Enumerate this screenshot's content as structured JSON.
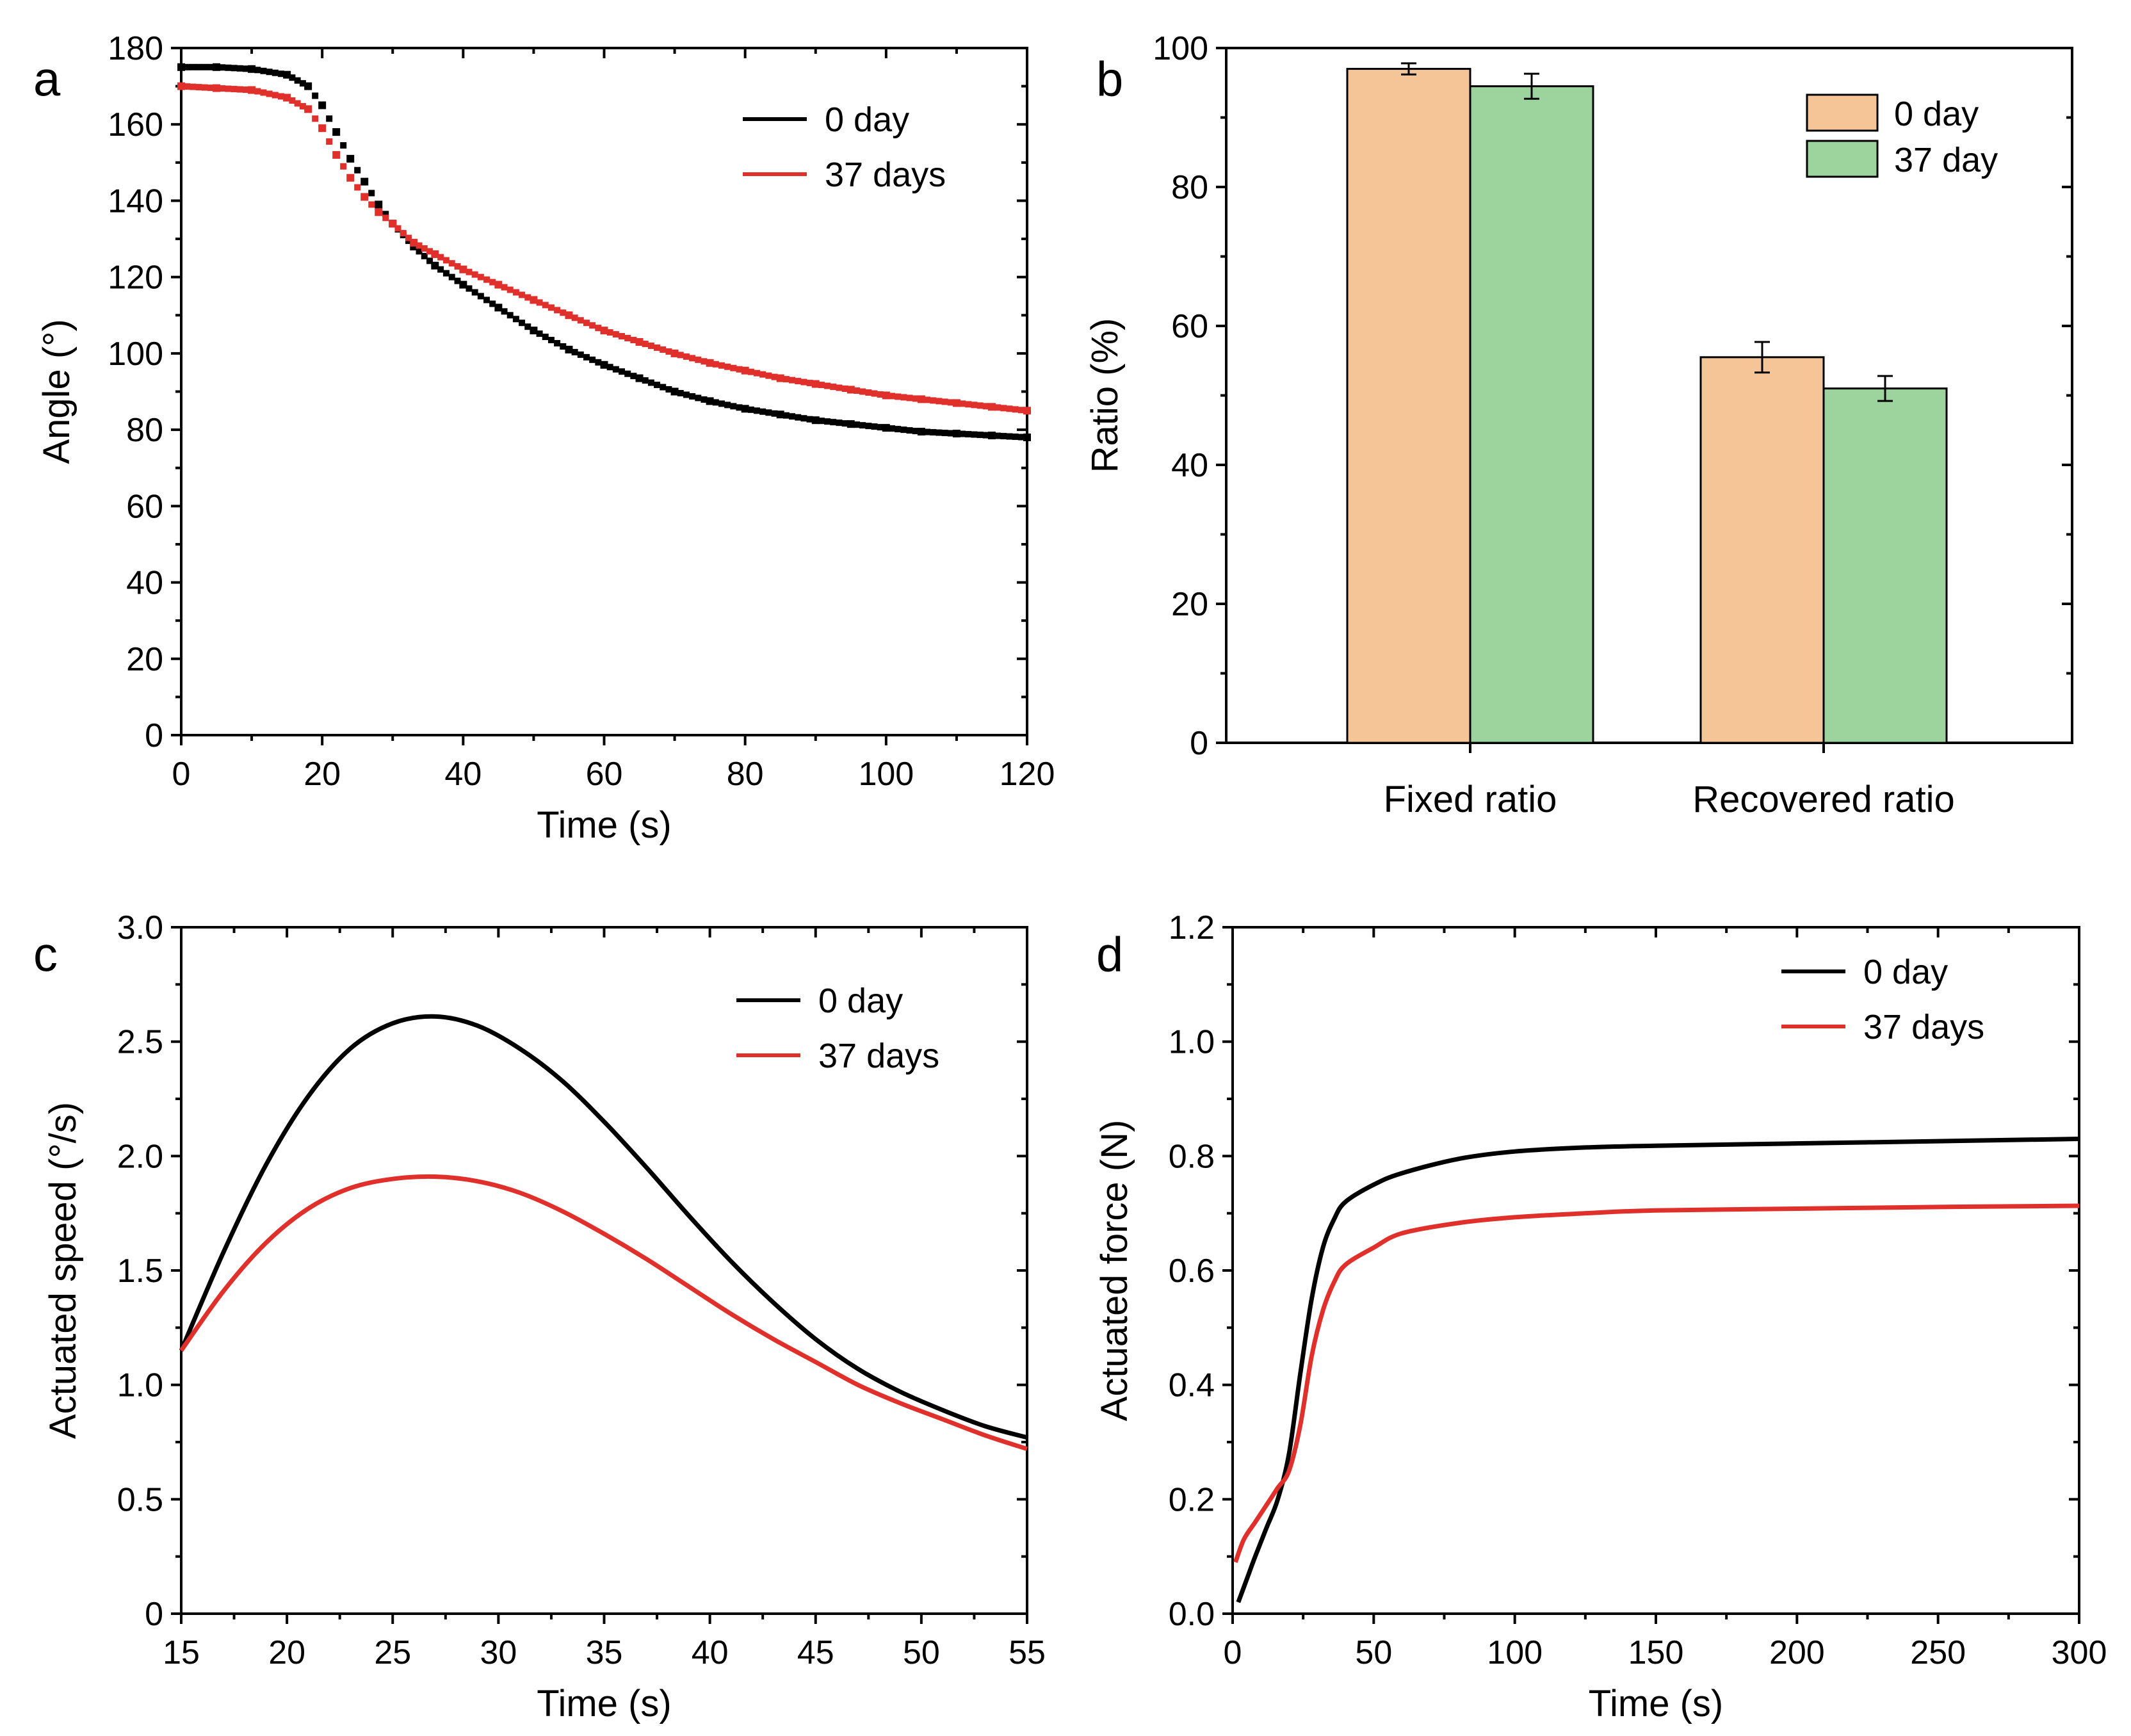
{
  "colors": {
    "black_series": "#000000",
    "red_series": "#e0302c",
    "bar_0day": "#f5c597",
    "bar_37day": "#9dd39d"
  },
  "chart_data": [
    {
      "panel": "a",
      "type": "scatter",
      "xlabel": "Time (s)",
      "ylabel": "Angle (°)",
      "xlim": [
        0,
        120
      ],
      "ylim": [
        0,
        180
      ],
      "xticks": [
        0,
        20,
        40,
        60,
        80,
        100,
        120
      ],
      "yticks": [
        0,
        20,
        40,
        60,
        80,
        100,
        120,
        140,
        160,
        180
      ],
      "legend": "top-right",
      "series": [
        {
          "name": "0 day",
          "color_key": "black_series",
          "x": [
            0,
            5,
            10,
            15,
            18,
            20,
            22,
            24,
            26,
            28,
            30,
            33,
            36,
            40,
            45,
            50,
            55,
            60,
            65,
            70,
            75,
            80,
            85,
            90,
            95,
            100,
            105,
            110,
            115,
            120
          ],
          "y": [
            175,
            175,
            174.5,
            173,
            170,
            165,
            158,
            151,
            145,
            139,
            134,
            128,
            123,
            118,
            112,
            106,
            101,
            97,
            93.5,
            90,
            87.5,
            85.5,
            84,
            82.5,
            81.5,
            80.5,
            79.5,
            79,
            78.5,
            78
          ]
        },
        {
          "name": "37 days",
          "color_key": "red_series",
          "x": [
            0,
            5,
            10,
            15,
            18,
            20,
            22,
            24,
            26,
            28,
            30,
            33,
            36,
            40,
            45,
            50,
            55,
            60,
            65,
            70,
            75,
            80,
            85,
            90,
            95,
            100,
            105,
            110,
            115,
            120
          ],
          "y": [
            170,
            169.5,
            169,
            167,
            164,
            159,
            152,
            146,
            141,
            137,
            134,
            129,
            126,
            122,
            118,
            114,
            110,
            106,
            103,
            100,
            97.5,
            95.5,
            93.5,
            92,
            90.5,
            89,
            88,
            87,
            86,
            85
          ]
        }
      ]
    },
    {
      "panel": "b",
      "type": "bar",
      "ylabel": "Ratio (%)",
      "ylim": [
        0,
        100
      ],
      "yticks": [
        0,
        20,
        40,
        60,
        80,
        100
      ],
      "categories": [
        "Fixed ratio",
        "Recovered ratio"
      ],
      "legend": "top-right",
      "series": [
        {
          "name": "0 day",
          "color_key": "bar_0day",
          "values": [
            97,
            55.5
          ],
          "errors": [
            0.8,
            2.2
          ]
        },
        {
          "name": "37 day",
          "color_key": "bar_37day",
          "values": [
            94.5,
            51
          ],
          "errors": [
            1.8,
            1.8
          ]
        }
      ]
    },
    {
      "panel": "c",
      "type": "line",
      "xlabel": "Time (s)",
      "ylabel": "Actuated speed (°/s)",
      "xlim": [
        15,
        55
      ],
      "ylim": [
        0,
        3.0
      ],
      "xticks": [
        15,
        20,
        25,
        30,
        35,
        40,
        45,
        50,
        55
      ],
      "yticks": [
        0,
        0.5,
        1.0,
        1.5,
        2.0,
        2.5,
        3.0
      ],
      "ytick_labels": [
        "0",
        "0.5",
        "1.0",
        "1.5",
        "2.0",
        "2.5",
        "3.0"
      ],
      "legend": "top-right",
      "series": [
        {
          "name": "0 day",
          "color_key": "black_series",
          "x": [
            15,
            17,
            19,
            21,
            23,
            25,
            27,
            29,
            31,
            33,
            35,
            37,
            39,
            41,
            43,
            45,
            47,
            49,
            51,
            53,
            55
          ],
          "y": [
            1.15,
            1.58,
            1.96,
            2.26,
            2.47,
            2.58,
            2.61,
            2.57,
            2.47,
            2.33,
            2.15,
            1.95,
            1.74,
            1.54,
            1.36,
            1.2,
            1.07,
            0.97,
            0.89,
            0.82,
            0.77
          ]
        },
        {
          "name": "37 days",
          "color_key": "red_series",
          "x": [
            15,
            17,
            19,
            21,
            23,
            25,
            27,
            29,
            31,
            33,
            35,
            37,
            39,
            41,
            43,
            45,
            47,
            49,
            51,
            53,
            55
          ],
          "y": [
            1.15,
            1.41,
            1.62,
            1.77,
            1.86,
            1.9,
            1.91,
            1.89,
            1.84,
            1.76,
            1.66,
            1.55,
            1.43,
            1.31,
            1.2,
            1.1,
            1.0,
            0.92,
            0.85,
            0.78,
            0.72
          ]
        }
      ]
    },
    {
      "panel": "d",
      "type": "line",
      "xlabel": "Time (s)",
      "ylabel": "Actuated force (N)",
      "xlim": [
        0,
        300
      ],
      "ylim": [
        0,
        1.2
      ],
      "xticks": [
        0,
        50,
        100,
        150,
        200,
        250,
        300
      ],
      "yticks": [
        0,
        0.2,
        0.4,
        0.6,
        0.8,
        1.0,
        1.2
      ],
      "ytick_labels": [
        "0.0",
        "0.2",
        "0.4",
        "0.6",
        "0.8",
        "1.0",
        "1.2"
      ],
      "legend": "top-right",
      "series": [
        {
          "name": "0 day",
          "color_key": "black_series",
          "x": [
            2,
            5,
            8,
            12,
            16,
            20,
            24,
            28,
            32,
            36,
            40,
            50,
            60,
            80,
            100,
            125,
            150,
            200,
            250,
            300
          ],
          "y": [
            0.02,
            0.06,
            0.1,
            0.15,
            0.2,
            0.28,
            0.42,
            0.55,
            0.64,
            0.69,
            0.72,
            0.75,
            0.77,
            0.795,
            0.808,
            0.815,
            0.818,
            0.822,
            0.826,
            0.83
          ]
        },
        {
          "name": "37 days",
          "color_key": "red_series",
          "x": [
            1,
            4,
            8,
            12,
            16,
            20,
            24,
            28,
            32,
            36,
            40,
            50,
            60,
            80,
            100,
            125,
            150,
            200,
            250,
            300
          ],
          "y": [
            0.09,
            0.13,
            0.16,
            0.19,
            0.22,
            0.25,
            0.33,
            0.45,
            0.53,
            0.58,
            0.61,
            0.64,
            0.665,
            0.683,
            0.693,
            0.7,
            0.705,
            0.708,
            0.711,
            0.713
          ]
        }
      ]
    }
  ]
}
